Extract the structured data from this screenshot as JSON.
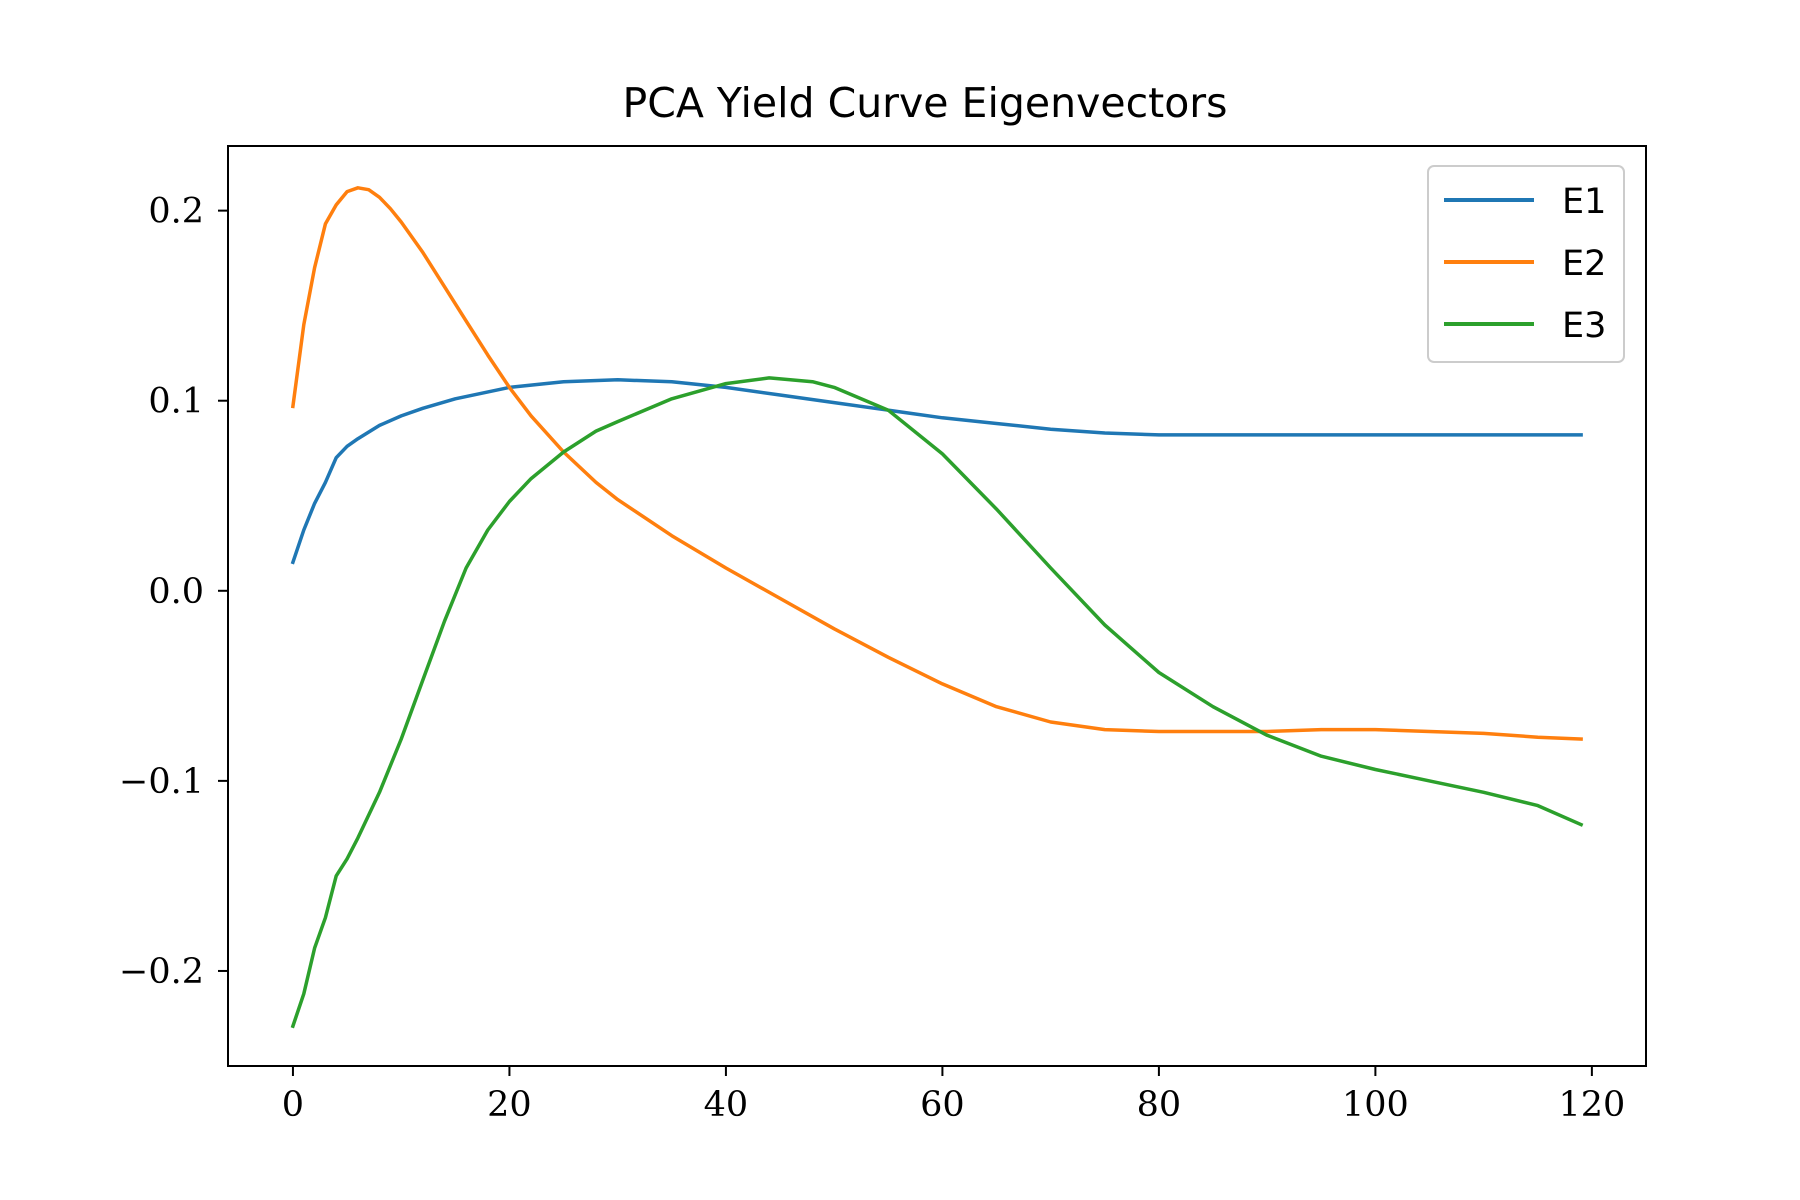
{
  "chart_data": {
    "type": "line",
    "title": "PCA Yield Curve Eigenvectors",
    "xlabel": "",
    "ylabel": "",
    "xlim": [
      -6,
      125
    ],
    "ylim": [
      -0.25,
      0.234
    ],
    "xticks": [
      0,
      20,
      40,
      60,
      80,
      100,
      120
    ],
    "xtick_labels": [
      "0",
      "20",
      "40",
      "60",
      "80",
      "100",
      "120"
    ],
    "yticks": [
      -0.2,
      -0.1,
      0.0,
      0.1,
      0.2
    ],
    "ytick_labels": [
      "−0.2",
      "−0.1",
      "0.0",
      "0.1",
      "0.2"
    ],
    "grid": false,
    "legend_position": "top-right",
    "series": [
      {
        "name": "E1",
        "color": "#1f77b4",
        "x": [
          0,
          1,
          2,
          3,
          4,
          5,
          6,
          8,
          10,
          12,
          15,
          20,
          25,
          30,
          35,
          40,
          45,
          50,
          55,
          60,
          65,
          70,
          75,
          80,
          85,
          90,
          95,
          100,
          105,
          110,
          115,
          119
        ],
        "y": [
          0.015,
          0.032,
          0.046,
          0.057,
          0.07,
          0.076,
          0.08,
          0.087,
          0.092,
          0.096,
          0.101,
          0.107,
          0.11,
          0.111,
          0.11,
          0.107,
          0.103,
          0.099,
          0.095,
          0.091,
          0.088,
          0.085,
          0.083,
          0.082,
          0.082,
          0.082,
          0.082,
          0.082,
          0.082,
          0.082,
          0.082,
          0.082
        ]
      },
      {
        "name": "E2",
        "color": "#ff7f0e",
        "x": [
          0,
          1,
          2,
          3,
          4,
          5,
          6,
          7,
          8,
          9,
          10,
          12,
          14,
          16,
          18,
          20,
          22,
          25,
          28,
          30,
          35,
          40,
          45,
          50,
          55,
          60,
          65,
          70,
          75,
          80,
          85,
          90,
          95,
          100,
          105,
          110,
          115,
          119
        ],
        "y": [
          0.097,
          0.14,
          0.17,
          0.193,
          0.203,
          0.21,
          0.212,
          0.211,
          0.207,
          0.201,
          0.194,
          0.178,
          0.16,
          0.142,
          0.124,
          0.107,
          0.092,
          0.073,
          0.057,
          0.048,
          0.029,
          0.012,
          -0.004,
          -0.02,
          -0.035,
          -0.049,
          -0.061,
          -0.069,
          -0.073,
          -0.074,
          -0.074,
          -0.074,
          -0.073,
          -0.073,
          -0.074,
          -0.075,
          -0.077,
          -0.078
        ]
      },
      {
        "name": "E3",
        "color": "#2ca02c",
        "x": [
          0,
          1,
          2,
          3,
          4,
          5,
          6,
          8,
          10,
          12,
          14,
          16,
          18,
          20,
          22,
          25,
          28,
          30,
          35,
          40,
          44,
          48,
          50,
          55,
          60,
          65,
          70,
          75,
          80,
          85,
          90,
          95,
          100,
          105,
          110,
          115,
          119
        ],
        "y": [
          -0.229,
          -0.212,
          -0.188,
          -0.172,
          -0.15,
          -0.141,
          -0.13,
          -0.106,
          -0.078,
          -0.047,
          -0.016,
          0.012,
          0.032,
          0.047,
          0.059,
          0.073,
          0.084,
          0.089,
          0.101,
          0.109,
          0.112,
          0.11,
          0.107,
          0.095,
          0.072,
          0.043,
          0.012,
          -0.018,
          -0.043,
          -0.061,
          -0.076,
          -0.087,
          -0.094,
          -0.1,
          -0.106,
          -0.113,
          -0.123
        ]
      }
    ]
  }
}
